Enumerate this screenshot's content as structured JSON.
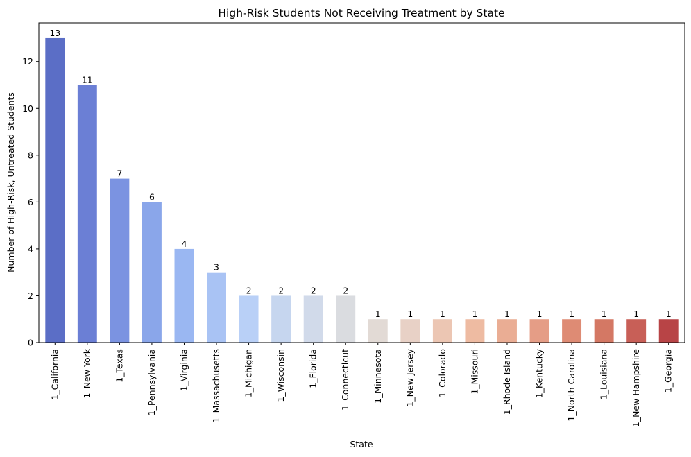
{
  "chart_data": {
    "type": "bar",
    "title": "High-Risk Students Not Receiving Treatment by State",
    "xlabel": "State",
    "ylabel": "Number of High-Risk, Untreated Students",
    "categories": [
      "1_California",
      "1_New York",
      "1_Texas",
      "1_Pennsylvania",
      "1_Virginia",
      "1_Massachusetts",
      "1_Michigan",
      "1_Wisconsin",
      "1_Florida",
      "1_Connecticut",
      "1_Minnesota",
      "1_New Jersey",
      "1_Colorado",
      "1_Missouri",
      "1_Rhode Island",
      "1_Kentucky",
      "1_North Carolina",
      "1_Louisiana",
      "1_New Hampshire",
      "1_Georgia"
    ],
    "values": [
      13,
      11,
      7,
      6,
      4,
      3,
      2,
      2,
      2,
      2,
      1,
      1,
      1,
      1,
      1,
      1,
      1,
      1,
      1,
      1
    ],
    "data_labels": [
      "13",
      "11",
      "7",
      "6",
      "4",
      "3",
      "2",
      "2",
      "2",
      "2",
      "1",
      "1",
      "1",
      "1",
      "1",
      "1",
      "1",
      "1",
      "1",
      "1"
    ],
    "colors": [
      "#5b6ec6",
      "#6b7fd5",
      "#7b93e1",
      "#8aa6ea",
      "#9ab7f2",
      "#a9c3f4",
      "#b9d0f7",
      "#c6d6ef",
      "#d1daea",
      "#dadce0",
      "#e2dad5",
      "#e8d1c6",
      "#ecc6b3",
      "#eebba2",
      "#eaad94",
      "#e59d86",
      "#de8b74",
      "#d47864",
      "#c85f57",
      "#b84446"
    ],
    "yticks": [
      0,
      2,
      4,
      6,
      8,
      10,
      12
    ],
    "ytick_labels": [
      "0",
      "2",
      "4",
      "6",
      "8",
      "10",
      "12"
    ],
    "ylim": [
      0,
      13.65
    ],
    "grid": false,
    "legend": "none"
  }
}
